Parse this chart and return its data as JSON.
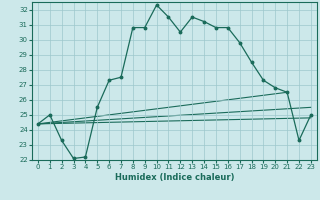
{
  "title": "",
  "xlabel": "Humidex (Indice chaleur)",
  "bg_color": "#cce8ea",
  "grid_color": "#9ec8cc",
  "line_color": "#1a6b5a",
  "xlim": [
    -0.5,
    23.5
  ],
  "ylim": [
    22,
    32.5
  ],
  "xticks": [
    0,
    1,
    2,
    3,
    4,
    5,
    6,
    7,
    8,
    9,
    10,
    11,
    12,
    13,
    14,
    15,
    16,
    17,
    18,
    19,
    20,
    21,
    22,
    23
  ],
  "yticks": [
    22,
    23,
    24,
    25,
    26,
    27,
    28,
    29,
    30,
    31,
    32
  ],
  "main_series": [
    [
      0,
      24.4
    ],
    [
      1,
      25.0
    ],
    [
      2,
      23.3
    ],
    [
      3,
      22.1
    ],
    [
      4,
      22.2
    ],
    [
      5,
      25.5
    ],
    [
      6,
      27.3
    ],
    [
      7,
      27.5
    ],
    [
      8,
      30.8
    ],
    [
      9,
      30.8
    ],
    [
      10,
      32.3
    ],
    [
      11,
      31.5
    ],
    [
      12,
      30.5
    ],
    [
      13,
      31.5
    ],
    [
      14,
      31.2
    ],
    [
      15,
      30.8
    ],
    [
      16,
      30.8
    ],
    [
      17,
      29.8
    ],
    [
      18,
      28.5
    ],
    [
      19,
      27.3
    ],
    [
      20,
      26.8
    ],
    [
      21,
      26.5
    ],
    [
      22,
      23.3
    ],
    [
      23,
      25.0
    ]
  ],
  "diag_line1": [
    [
      0,
      24.4
    ],
    [
      23,
      24.8
    ]
  ],
  "diag_line2": [
    [
      0,
      24.4
    ],
    [
      23,
      25.5
    ]
  ],
  "diag_line3": [
    [
      0,
      24.4
    ],
    [
      21,
      26.5
    ]
  ]
}
